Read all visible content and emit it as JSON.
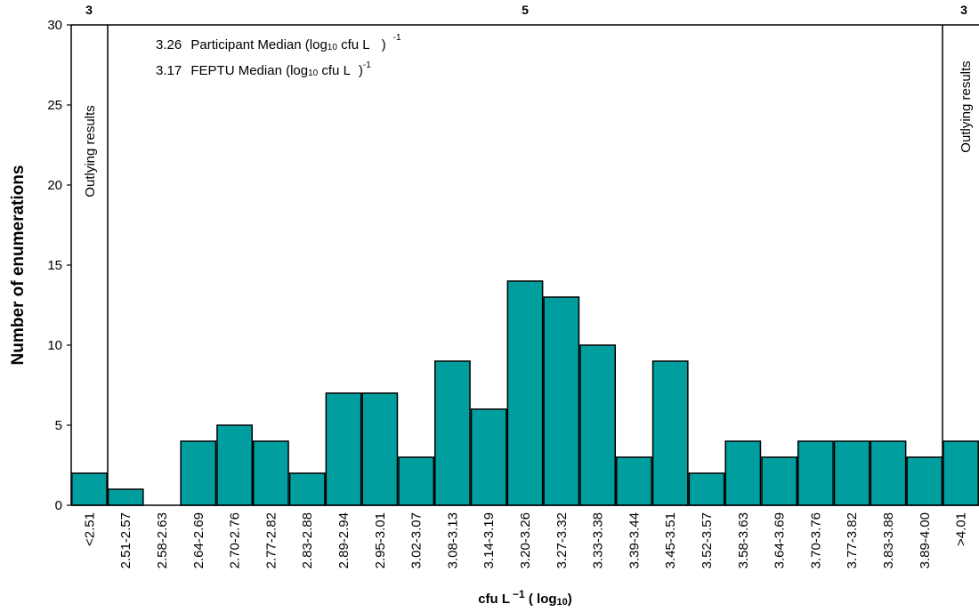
{
  "chart_data": {
    "type": "bar",
    "ylabel": "Number of enumerations",
    "xlabel": {
      "prefix": "cfu L",
      "exponent": "−1",
      "paren_open": " ( log",
      "subscript": "10",
      "paren_close": ")"
    },
    "ylim": [
      0,
      30
    ],
    "yticks": [
      "0",
      "5",
      "10",
      "15",
      "20",
      "25",
      "30"
    ],
    "categories": [
      "<2.51",
      "2.51-2.57",
      "2.58-2.63",
      "2.64-2.69",
      "2.70-2.76",
      "2.77-2.82",
      "2.83-2.88",
      "2.89-2.94",
      "2.95-3.01",
      "3.02-3.07",
      "3.08-3.13",
      "3.14-3.19",
      "3.20-3.26",
      "3.27-3.32",
      "3.33-3.38",
      "3.39-3.44",
      "3.45-3.51",
      "3.52-3.57",
      "3.58-3.63",
      "3.64-3.69",
      "3.70-3.76",
      "3.77-3.82",
      "3.83-3.88",
      "3.89-4.00",
      ">4.01"
    ],
    "values": [
      2,
      1,
      0,
      4,
      5,
      4,
      2,
      7,
      7,
      3,
      9,
      6,
      14,
      13,
      10,
      3,
      9,
      2,
      4,
      3,
      4,
      4,
      4,
      3,
      4
    ],
    "bar_color": "#009E9E",
    "top_labels": [
      "3",
      "5",
      "3"
    ],
    "outlying_label": "Outlying results",
    "medians": [
      {
        "value": "3.26",
        "label": "Participant Median (log",
        "sub": "10",
        "unit": " cfu L",
        "sup": "-1"
      },
      {
        "value": "3.17",
        "label": "FEPTU Median (log",
        "sub": "10",
        "unit": " cfu L",
        "sup": "-1"
      }
    ]
  }
}
